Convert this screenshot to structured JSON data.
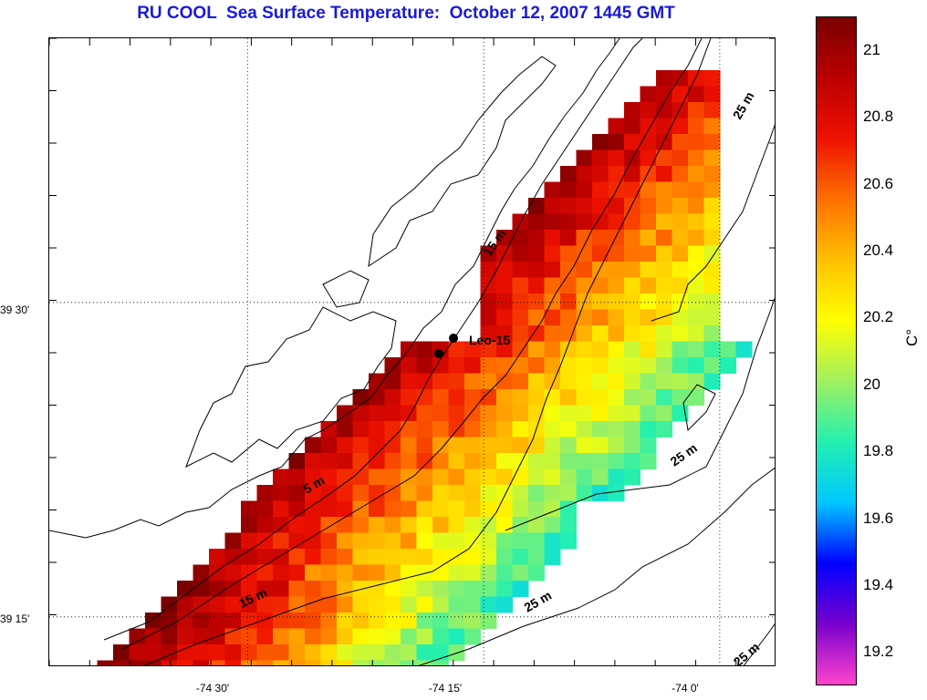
{
  "title": "RU COOL  Sea Surface Temperature:  October 12, 2007 1445 GMT",
  "lat_ticks": [
    {
      "label": "39 30'",
      "lat": 39.5
    },
    {
      "label": "39 15'",
      "lat": 39.25
    }
  ],
  "lon_ticks": [
    {
      "label": "-74 30'",
      "lon": -74.5
    },
    {
      "label": "-74 15'",
      "lon": -74.25
    },
    {
      "label": "-74 0'",
      "lon": -74.0
    }
  ],
  "map_extent": {
    "lon_min": -74.71,
    "lon_max": -73.94,
    "lat_min": 39.21,
    "lat_max": 39.71
  },
  "colorbar": {
    "unit": "C°",
    "range": [
      19.1,
      21.1
    ],
    "ticks": [
      "21",
      "20.8",
      "20.6",
      "20.4",
      "20.2",
      "20",
      "19.8",
      "19.6",
      "19.4",
      "19.2"
    ],
    "tick_values": [
      21.0,
      20.8,
      20.6,
      20.4,
      20.2,
      20.0,
      19.8,
      19.6,
      19.4,
      19.2
    ],
    "stops": [
      "#ff44cc",
      "#7700cc",
      "#0000ff",
      "#00c8ff",
      "#22f0b0",
      "#a0f060",
      "#ffff00",
      "#ffc000",
      "#ff7000",
      "#ee1100",
      "#bb0000",
      "#7a0000"
    ]
  },
  "contour_labels": [
    {
      "text": "5 m"
    },
    {
      "text": "15 m"
    },
    {
      "text": "15 m"
    },
    {
      "text": "25 m"
    },
    {
      "text": "25 m"
    },
    {
      "text": "25 m"
    },
    {
      "text": "25 m"
    }
  ],
  "station": {
    "name": "Leo-15"
  },
  "colors": {
    "title": "#1a1ad8",
    "coast": "#000000",
    "grid": "#000000"
  }
}
